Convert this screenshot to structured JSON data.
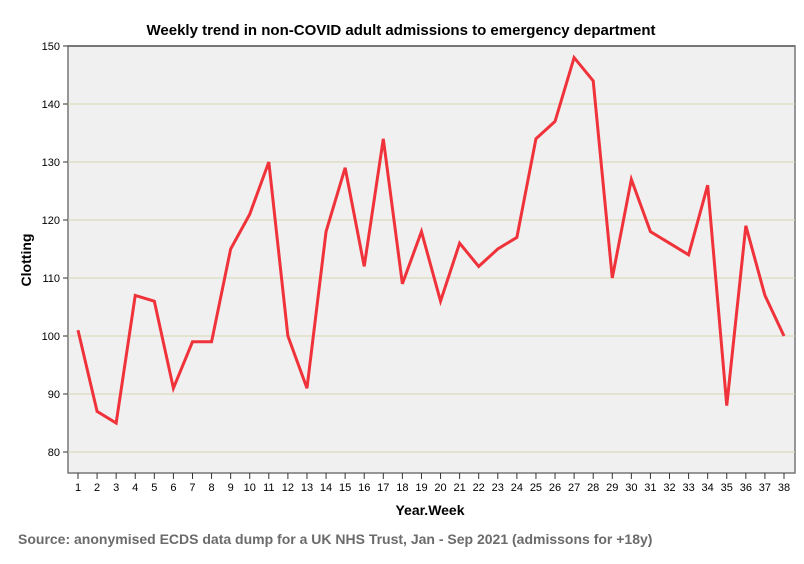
{
  "chart_data": {
    "type": "line",
    "title": "Weekly trend in non-COVID adult admissions to emergency department",
    "xlabel": "Year.Week",
    "ylabel": "Clotting",
    "ylim": [
      75,
      150
    ],
    "yticks": [
      80,
      90,
      100,
      110,
      120,
      130,
      140,
      150
    ],
    "grid": true,
    "x": [
      1,
      2,
      3,
      4,
      5,
      6,
      7,
      8,
      9,
      10,
      11,
      12,
      13,
      14,
      15,
      16,
      17,
      18,
      19,
      20,
      21,
      22,
      23,
      24,
      25,
      26,
      27,
      28,
      29,
      30,
      31,
      32,
      33,
      34,
      35,
      36,
      37,
      38
    ],
    "series": [
      {
        "name": "Admissions",
        "color": "#f0323a",
        "values": [
          101,
          87,
          85,
          107,
          106,
          91,
          99,
          99,
          115,
          121,
          130,
          100,
          91,
          118,
          129,
          112,
          134,
          109,
          118,
          106,
          116,
          112,
          115,
          117,
          134,
          137,
          148,
          144,
          110,
          127,
          118,
          116,
          114,
          126,
          88,
          119,
          107,
          100
        ]
      }
    ]
  },
  "source": "Source: anonymised ECDS data dump for a UK NHS Trust, Jan - Sep 2021 (admissons for +18y)",
  "colors": {
    "plot_bg": "#f0f0f0",
    "grid": "#d8d4b0",
    "line": "#f0323a"
  }
}
